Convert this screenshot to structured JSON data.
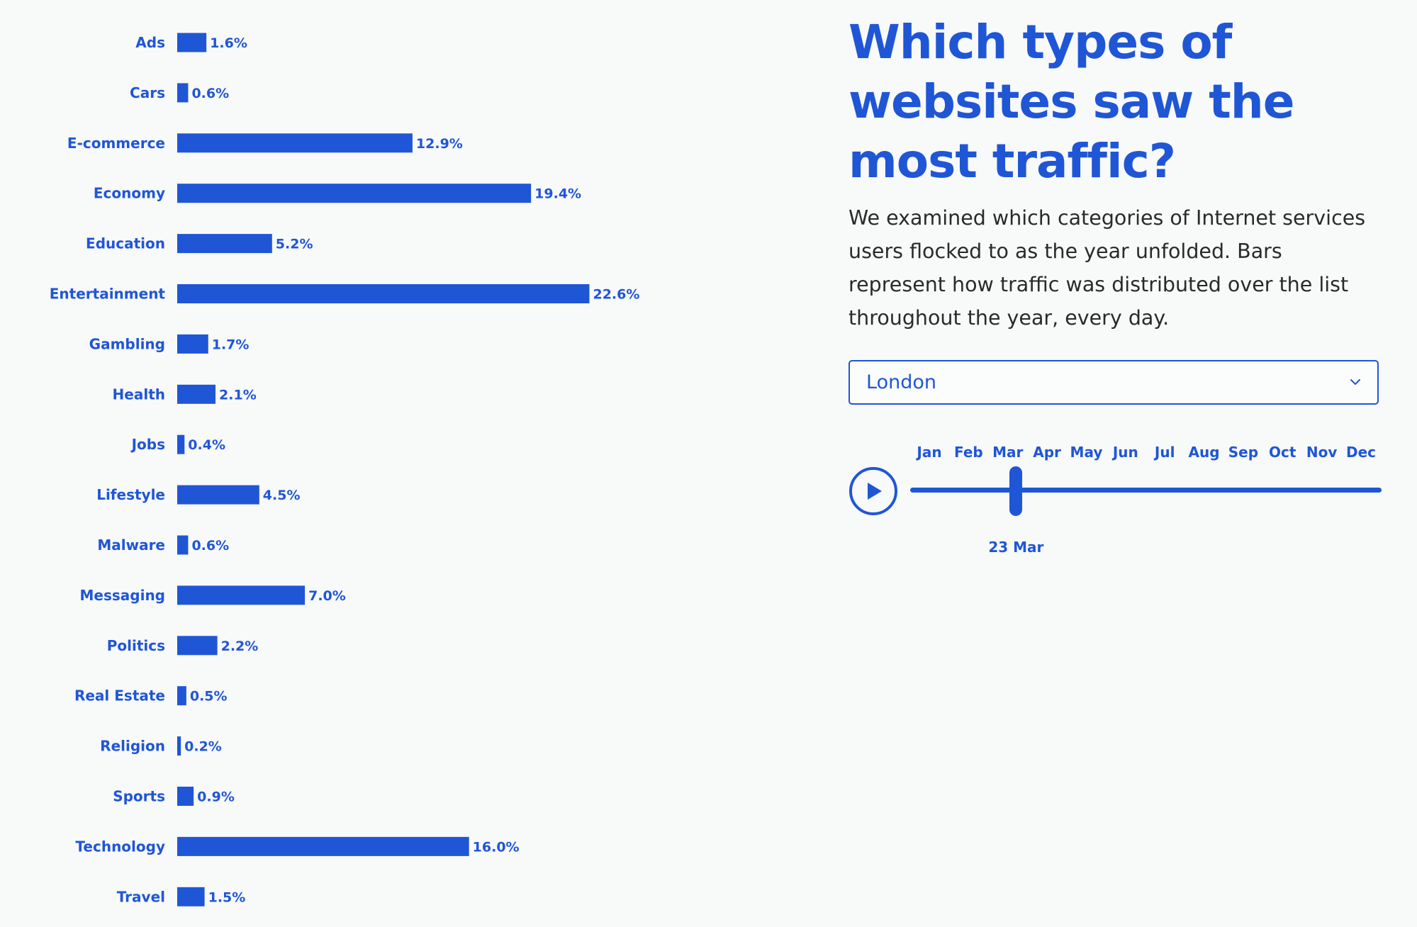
{
  "heading": "Which types of websites saw the most traffic?",
  "description": "We examined which categories of Internet services users flocked to as the year unfolded. Bars represent how traffic was distributed over the list throughout the year, every day.",
  "location_select": {
    "selected": "London",
    "icon": "chevron-down-icon"
  },
  "timeline": {
    "play_icon": "play-icon",
    "months": [
      "Jan",
      "Feb",
      "Mar",
      "Apr",
      "May",
      "Jun",
      "Jul",
      "Aug",
      "Sep",
      "Oct",
      "Nov",
      "Dec"
    ],
    "current_date": "23 Mar",
    "current_day_of_year": 82,
    "days_in_year": 365
  },
  "accent_color": "#1f56d6",
  "chart_data": {
    "type": "bar",
    "orientation": "horizontal",
    "categories": [
      "Ads",
      "Cars",
      "E-commerce",
      "Economy",
      "Education",
      "Entertainment",
      "Gambling",
      "Health",
      "Jobs",
      "Lifestyle",
      "Malware",
      "Messaging",
      "Politics",
      "Real Estate",
      "Religion",
      "Sports",
      "Technology",
      "Travel"
    ],
    "values": [
      1.6,
      0.6,
      12.9,
      19.4,
      5.2,
      22.6,
      1.7,
      2.1,
      0.4,
      4.5,
      0.6,
      7.0,
      2.2,
      0.5,
      0.2,
      0.9,
      16.0,
      1.5
    ],
    "value_labels": [
      "1.6%",
      "0.6%",
      "12.9%",
      "19.4%",
      "5.2%",
      "22.6%",
      "1.7%",
      "2.1%",
      "0.4%",
      "4.5%",
      "0.6%",
      "7.0%",
      "2.2%",
      "0.5%",
      "0.2%",
      "0.9%",
      "16.0%",
      "1.5%"
    ],
    "unit": "%",
    "grid": false,
    "legend": "none"
  }
}
